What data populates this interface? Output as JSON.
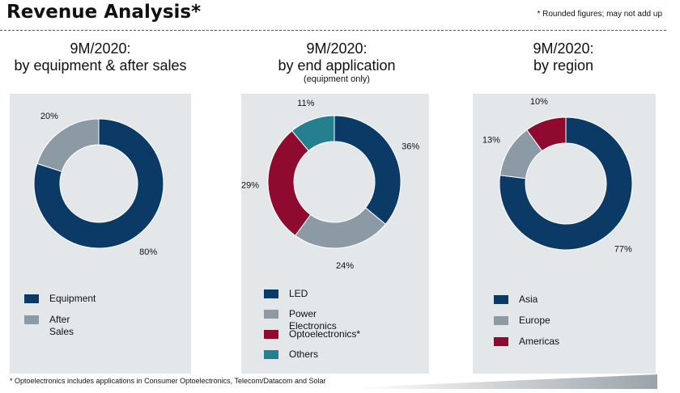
{
  "header": {
    "title": "Revenue Analysis*",
    "note": "* Rounded figures; may not add up"
  },
  "footnote": "* Optoelectronics includes applications in Consumer Optoelectronics, Telecom/Datacom and Solar",
  "colors": {
    "navy": "#0b3a66",
    "gray": "#8c9aa6",
    "red": "#8e0a2e",
    "teal": "#24808e",
    "panel": "#e4e7ea"
  },
  "chart_data": [
    {
      "type": "pie",
      "title": "9M/2020:\nby equipment & after sales",
      "subtitle": "",
      "donut": true,
      "series": [
        {
          "name": "Equipment",
          "value": 80,
          "label": "80%",
          "color": "#0b3a66"
        },
        {
          "name": "After Sales",
          "value": 20,
          "label": "20%",
          "color": "#8c9aa6"
        }
      ]
    },
    {
      "type": "pie",
      "title": "9M/2020:\nby end application",
      "subtitle": "(equipment only)",
      "donut": true,
      "series": [
        {
          "name": "LED",
          "value": 36,
          "label": "36%",
          "color": "#0b3a66"
        },
        {
          "name": "Power Electronics",
          "value": 24,
          "label": "24%",
          "color": "#8c9aa6"
        },
        {
          "name": "Optoelectronics*",
          "value": 29,
          "label": "29%",
          "color": "#8e0a2e"
        },
        {
          "name": "Others",
          "value": 11,
          "label": "11%",
          "color": "#24808e"
        }
      ]
    },
    {
      "type": "pie",
      "title": "9M/2020:\nby region",
      "subtitle": "",
      "donut": true,
      "series": [
        {
          "name": "Asia",
          "value": 77,
          "label": "77%",
          "color": "#0b3a66"
        },
        {
          "name": "Europe",
          "value": 13,
          "label": "13%",
          "color": "#8c9aa6"
        },
        {
          "name": "Americas",
          "value": 10,
          "label": "10%",
          "color": "#8e0a2e"
        }
      ]
    }
  ]
}
